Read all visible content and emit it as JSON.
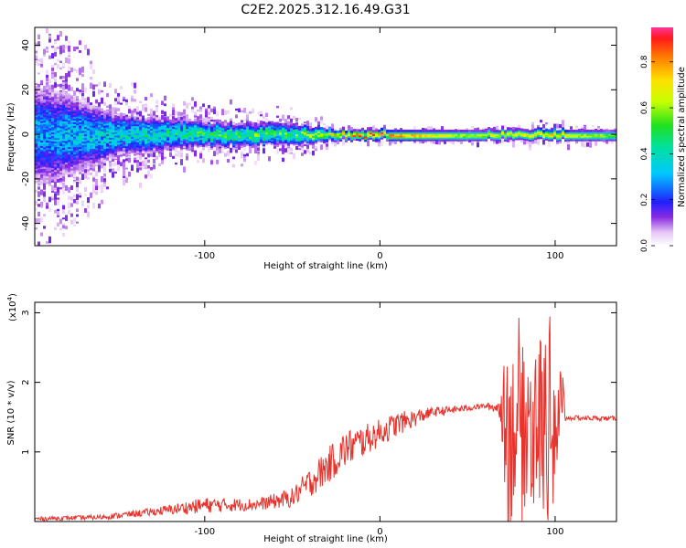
{
  "title": "C2E2.2025.312.16.49.G31",
  "colors": {
    "snr_line": "#e8322c",
    "axis": "#000000"
  },
  "chart_data": [
    {
      "type": "heatmap",
      "title": "C2E2.2025.312.16.49.G31",
      "xlabel": "Height of straight line (km)",
      "ylabel": "Frequency (Hz)",
      "xlim": [
        -197,
        135
      ],
      "ylim": [
        -50,
        48
      ],
      "xticks": [
        "-100",
        "0",
        "100"
      ],
      "yticks": [
        "40",
        "20",
        "0",
        "-20",
        "-40"
      ],
      "colorbar": {
        "label": "Normalized spectral amplitude",
        "range": [
          0.0,
          0.95
        ],
        "ticks": [
          "0.0",
          "0.2",
          "0.4",
          "0.6",
          "0.8"
        ]
      },
      "description_points": [
        {
          "x": -190,
          "spread_hz": 48,
          "peak": 0.35
        },
        {
          "x": -150,
          "spread_hz": 20,
          "peak": 0.45
        },
        {
          "x": -100,
          "spread_hz": 12,
          "peak": 0.55
        },
        {
          "x": -50,
          "spread_hz": 10,
          "peak": 0.6
        },
        {
          "x": -20,
          "spread_hz": 4,
          "peak": 0.9
        },
        {
          "x": 0,
          "spread_hz": 3,
          "peak": 0.95
        },
        {
          "x": 50,
          "spread_hz": 3,
          "peak": 0.7
        },
        {
          "x": 100,
          "spread_hz": 5,
          "peak": 0.8
        },
        {
          "x": 130,
          "spread_hz": 3,
          "peak": 0.65
        }
      ]
    },
    {
      "type": "line",
      "xlabel": "Height of straight line (km)",
      "ylabel": "SNR (10 * v/v)",
      "y_multiplier": "(x10",
      "y_multiplier_exp": "4",
      "y_multiplier_close": ")",
      "xlim": [
        -197,
        135
      ],
      "ylim": [
        0,
        3.15
      ],
      "xticks": [
        "-100",
        "0",
        "100"
      ],
      "yticks": [
        "3",
        "2",
        "1"
      ],
      "envelope": [
        {
          "x": -197,
          "y": 0.03,
          "noise": 0.04
        },
        {
          "x": -160,
          "y": 0.05,
          "noise": 0.05
        },
        {
          "x": -130,
          "y": 0.12,
          "noise": 0.08
        },
        {
          "x": -100,
          "y": 0.2,
          "noise": 0.16
        },
        {
          "x": -70,
          "y": 0.22,
          "noise": 0.12
        },
        {
          "x": -50,
          "y": 0.3,
          "noise": 0.2
        },
        {
          "x": -35,
          "y": 0.6,
          "noise": 0.35
        },
        {
          "x": -20,
          "y": 0.95,
          "noise": 0.4
        },
        {
          "x": -5,
          "y": 1.15,
          "noise": 0.3
        },
        {
          "x": 10,
          "y": 1.35,
          "noise": 0.25
        },
        {
          "x": 30,
          "y": 1.55,
          "noise": 0.1
        },
        {
          "x": 60,
          "y": 1.65,
          "noise": 0.05
        },
        {
          "x": 68,
          "y": 1.6,
          "noise": 0.15
        },
        {
          "x": 72,
          "y": 1.4,
          "noise": 1.6
        },
        {
          "x": 90,
          "y": 1.45,
          "noise": 1.5
        },
        {
          "x": 103,
          "y": 1.45,
          "noise": 1.5
        },
        {
          "x": 106,
          "y": 1.48,
          "noise": 0.05
        },
        {
          "x": 135,
          "y": 1.47,
          "noise": 0.05
        }
      ]
    }
  ]
}
